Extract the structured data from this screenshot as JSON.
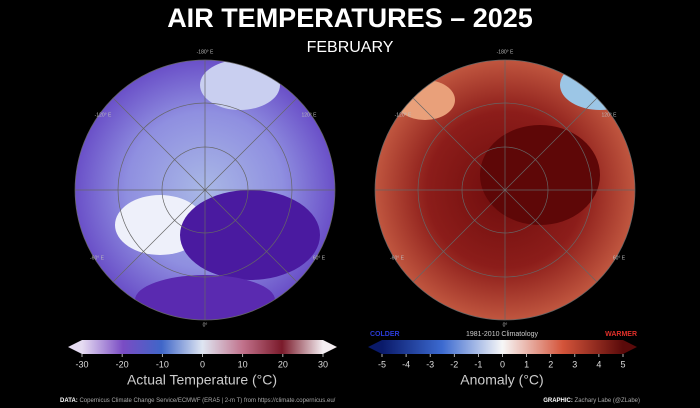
{
  "header": {
    "title": "AIR TEMPERATURES – 2025",
    "subtitle": "FEBRUARY"
  },
  "maps": [
    {
      "labels": [
        "-180° E",
        "-120° E",
        "120° E",
        "-60° E",
        "60° E",
        "0°"
      ]
    },
    {
      "labels": [
        "-180° E",
        "-120° E",
        "120° E",
        "-60° E",
        "60° E",
        "0°"
      ]
    }
  ],
  "colorbars": [
    {
      "ticks": [
        -30,
        -20,
        -10,
        0,
        10,
        20,
        30
      ],
      "label": "Actual Temperature (°C)"
    },
    {
      "ticks": [
        -5,
        -4,
        -3,
        -2,
        -1,
        0,
        1,
        2,
        3,
        4,
        5
      ],
      "label": "Anomaly (°C)",
      "note": "1981-2010 Climatology",
      "low": "COLDER",
      "high": "WARMER"
    }
  ],
  "footer": {
    "data_label": "DATA:",
    "data_text": "Copernicus Climate Change Service/ECMWF (ERA5 | 2-m T) from https://climate.copernicus.eu/",
    "graphic_label": "GRAPHIC:",
    "graphic_text": "Zachary Labe (@ZLabe)"
  }
}
